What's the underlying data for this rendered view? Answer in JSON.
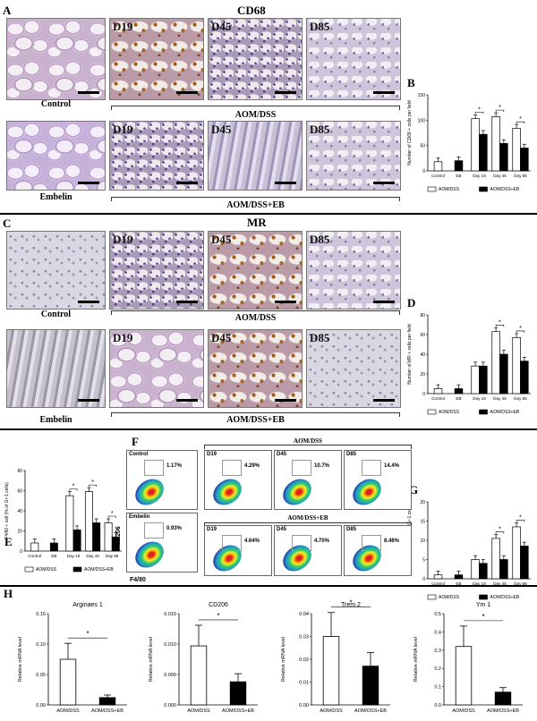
{
  "panels": {
    "A": {
      "letter": "A",
      "title": "CD68",
      "days": [
        "D19",
        "D45",
        "D85"
      ],
      "row1_label": "Control",
      "row2_label": "Embelin",
      "group1": "AOM/DSS",
      "group2": "AOM/DSS+EB"
    },
    "C": {
      "letter": "C",
      "title": "MR",
      "days": [
        "D19",
        "D45",
        "D85"
      ],
      "row1_label": "Control",
      "row2_label": "Embelin",
      "group1": "AOM/DSS",
      "group2": "AOM/DSS+EB"
    },
    "B": {
      "letter": "B"
    },
    "D": {
      "letter": "D"
    },
    "E": {
      "letter": "E"
    },
    "F": {
      "letter": "F",
      "ctrl_label": "Control",
      "emb_label": "Embelin",
      "group1": "AOM/DSS",
      "group2": "AOM/DSS+EB",
      "days": [
        "D19",
        "D45",
        "D85"
      ],
      "row1_pct": [
        "1.17%",
        "4.29%",
        "10.7%",
        "14.4%"
      ],
      "row2_pct": [
        "0.93%",
        "4.64%",
        "4.70%",
        "8.46%"
      ],
      "x_axis": "F4/80",
      "y_axis": "CD206"
    },
    "G": {
      "letter": "G"
    },
    "H": {
      "letter": "H"
    }
  },
  "chart_data": [
    {
      "id": "B",
      "type": "bar",
      "ylabel": "Number of CD68 + cells per field",
      "categories": [
        "Control",
        "EB",
        "Day 19",
        "Day 45",
        "Day 85"
      ],
      "ylim": [
        0,
        150
      ],
      "yticks": [
        "0",
        "50",
        "100",
        "150"
      ],
      "series": [
        {
          "name": "AOM/DSS",
          "color": "#ffffff",
          "values": [
            18,
            null,
            103,
            107,
            84
          ]
        },
        {
          "name": "AOM/DSS+EB",
          "color": "#000000",
          "values": [
            null,
            20,
            72,
            54,
            45
          ]
        }
      ],
      "sig": [
        "*",
        "*",
        "*"
      ],
      "legend": [
        "AOM/DSS",
        "AOM/DSS+EB"
      ]
    },
    {
      "id": "D",
      "type": "bar",
      "ylabel": "Number of MR + cells per field",
      "categories": [
        "Control",
        "EB",
        "Day 19",
        "Day 45",
        "Day 85"
      ],
      "ylim": [
        0,
        80
      ],
      "yticks": [
        "0",
        "20",
        "40",
        "60",
        "80"
      ],
      "series": [
        {
          "name": "AOM/DSS",
          "color": "#ffffff",
          "values": [
            5,
            null,
            28,
            63,
            57
          ]
        },
        {
          "name": "AOM/DSS+EB",
          "color": "#000000",
          "values": [
            null,
            5,
            28,
            40,
            33
          ]
        }
      ],
      "sig": [
        "*",
        "*"
      ],
      "legend": [
        "AOM/DSS",
        "AOM/DSS+EB"
      ]
    },
    {
      "id": "E",
      "type": "bar",
      "ylabel": "F4/80 + cell (% of Gr-1 cells)",
      "categories": [
        "Control",
        "EB",
        "Day 19",
        "Day 45",
        "Day 85"
      ],
      "ylim": [
        0,
        80
      ],
      "yticks": [
        "0",
        "20",
        "40",
        "60",
        "80"
      ],
      "series": [
        {
          "name": "AOM/DSS",
          "color": "#ffffff",
          "values": [
            8,
            null,
            55,
            59,
            28
          ]
        },
        {
          "name": "AOM/DSS+EB",
          "color": "#000000",
          "values": [
            null,
            8,
            21,
            28,
            14
          ]
        }
      ],
      "sig": [
        "*",
        "*",
        "*"
      ],
      "legend": [
        "AOM/DSS",
        "AOM/DSS+EB"
      ]
    },
    {
      "id": "G",
      "type": "bar",
      "ylabel": "F4/80+CD206+ cell (% of Gr-1 cells)",
      "categories": [
        "Control",
        "EB",
        "Day 19",
        "Day 45",
        "Day 85"
      ],
      "ylim": [
        0,
        20
      ],
      "yticks": [
        "0",
        "5",
        "10",
        "15",
        "20"
      ],
      "series": [
        {
          "name": "AOM/DSS",
          "color": "#ffffff",
          "values": [
            1,
            null,
            5,
            10.5,
            13.5
          ]
        },
        {
          "name": "AOM/DSS+EB",
          "color": "#000000",
          "values": [
            null,
            1,
            4,
            5,
            8.5
          ]
        }
      ],
      "sig": [
        "*",
        "*"
      ],
      "legend": [
        "AOM/DSS",
        "AOM/DSS+EB"
      ]
    },
    {
      "id": "H1",
      "type": "bar",
      "title": "Arginaes 1",
      "ylabel": "Relative mRNA level",
      "categories": [
        "AOM/DSS",
        "AOM/DSS+EB"
      ],
      "ylim": [
        0,
        0.15
      ],
      "yticks": [
        "0.00",
        "0.05",
        "0.10",
        "0.15"
      ],
      "values": [
        0.075,
        0.012
      ],
      "colors": [
        "#ffffff",
        "#000000"
      ],
      "sig": [
        "*"
      ]
    },
    {
      "id": "H2",
      "type": "bar",
      "title": "CD206",
      "ylabel": "Relative mRNA level",
      "categories": [
        "AOM/DSS",
        "AOM/DSS+EB"
      ],
      "ylim": [
        0,
        0.015
      ],
      "yticks": [
        "0.000",
        "0.005",
        "0.010",
        "0.015"
      ],
      "values": [
        0.0097,
        0.0038
      ],
      "colors": [
        "#ffffff",
        "#000000"
      ],
      "sig": [
        "*"
      ]
    },
    {
      "id": "H3",
      "type": "bar",
      "title": "Trem 2",
      "ylabel": "Relative mRNA level",
      "categories": [
        "AOM/DSS",
        "AOM/DSS+EB"
      ],
      "ylim": [
        0,
        0.04
      ],
      "yticks": [
        "0.00",
        "0.01",
        "0.02",
        "0.03",
        "0.04"
      ],
      "values": [
        0.03,
        0.017
      ],
      "colors": [
        "#ffffff",
        "#000000"
      ],
      "sig": [
        "*"
      ]
    },
    {
      "id": "H4",
      "type": "bar",
      "title": "Ym 1",
      "ylabel": "Relative mRNA level",
      "categories": [
        "AOM/DSS",
        "AOM/DSS+EB"
      ],
      "ylim": [
        0,
        0.5
      ],
      "yticks": [
        "0.0",
        "0.1",
        "0.2",
        "0.3",
        "0.4",
        "0.5"
      ],
      "values": [
        0.32,
        0.07
      ],
      "colors": [
        "#ffffff",
        "#000000"
      ],
      "sig": [
        "*"
      ]
    }
  ]
}
